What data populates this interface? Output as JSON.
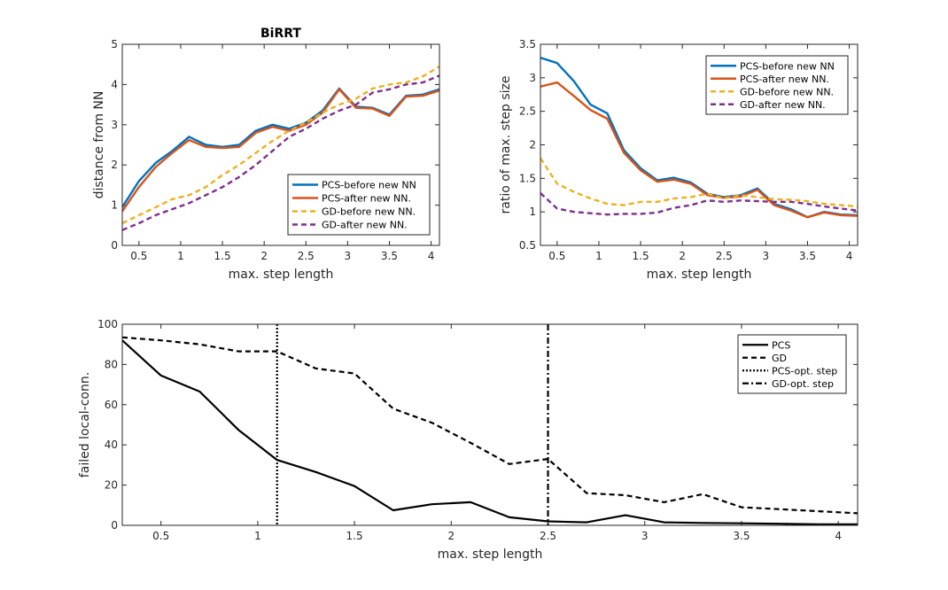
{
  "chart_data": [
    {
      "type": "line",
      "title": "BiRRT",
      "xlabel": "max. step length",
      "ylabel": "distance from NN",
      "xlim": [
        0.3,
        4.1
      ],
      "ylim": [
        0,
        5
      ],
      "xticks": [
        0.5,
        1,
        1.5,
        2,
        2.5,
        3,
        3.5,
        4
      ],
      "xtick_labels": [
        "0.5",
        "1",
        "1.5",
        "2",
        "2.5",
        "3",
        "3.5",
        "4"
      ],
      "yticks": [
        0,
        1,
        2,
        3,
        4,
        5
      ],
      "ytick_labels": [
        "0",
        "1",
        "2",
        "3",
        "4",
        "5"
      ],
      "legend_position": "bottom-right",
      "x": [
        0.3,
        0.5,
        0.7,
        0.9,
        1.1,
        1.3,
        1.5,
        1.7,
        1.9,
        2.1,
        2.3,
        2.5,
        2.7,
        2.9,
        3.1,
        3.3,
        3.5,
        3.7,
        3.9,
        4.1
      ],
      "series": [
        {
          "name": "PCS-before new NN",
          "color": "#0072BD",
          "dash": "solid",
          "values": [
            0.95,
            1.6,
            2.05,
            2.35,
            2.7,
            2.5,
            2.45,
            2.5,
            2.85,
            3.0,
            2.9,
            3.05,
            3.35,
            3.9,
            3.45,
            3.42,
            3.25,
            3.72,
            3.75,
            3.88
          ]
        },
        {
          "name": "PCS-after new NN.",
          "color": "#D95319",
          "dash": "solid",
          "values": [
            0.85,
            1.45,
            1.95,
            2.3,
            2.62,
            2.45,
            2.42,
            2.45,
            2.8,
            2.95,
            2.85,
            3.0,
            3.3,
            3.88,
            3.42,
            3.4,
            3.22,
            3.7,
            3.72,
            3.85
          ]
        },
        {
          "name": "GD-before new NN.",
          "color": "#EDB120",
          "dash": "dashed",
          "values": [
            0.55,
            0.75,
            0.95,
            1.15,
            1.25,
            1.45,
            1.75,
            2.0,
            2.3,
            2.6,
            2.85,
            3.05,
            3.3,
            3.5,
            3.65,
            3.9,
            4.0,
            4.05,
            4.2,
            4.45
          ]
        },
        {
          "name": "GD-after new NN.",
          "color": "#7E2F8E",
          "dash": "dashed",
          "values": [
            0.38,
            0.55,
            0.75,
            0.9,
            1.05,
            1.25,
            1.45,
            1.7,
            2.0,
            2.35,
            2.7,
            2.9,
            3.15,
            3.35,
            3.5,
            3.8,
            3.88,
            4.0,
            4.05,
            4.22
          ]
        }
      ]
    },
    {
      "type": "line",
      "title": "",
      "xlabel": "max. step length",
      "ylabel": "ratio of max. step size",
      "xlim": [
        0.3,
        4.1
      ],
      "ylim": [
        0.5,
        3.5
      ],
      "xticks": [
        0.5,
        1,
        1.5,
        2,
        2.5,
        3,
        3.5,
        4
      ],
      "xtick_labels": [
        "0.5",
        "1",
        "1.5",
        "2",
        "2.5",
        "3",
        "3.5",
        "4"
      ],
      "yticks": [
        0.5,
        1,
        1.5,
        2,
        2.5,
        3,
        3.5
      ],
      "ytick_labels": [
        "0.5",
        "1",
        "1.5",
        "2",
        "2.5",
        "3",
        "3.5"
      ],
      "legend_position": "top-right",
      "x": [
        0.3,
        0.5,
        0.7,
        0.9,
        1.1,
        1.3,
        1.5,
        1.7,
        1.9,
        2.1,
        2.3,
        2.5,
        2.7,
        2.9,
        3.1,
        3.3,
        3.5,
        3.7,
        3.9,
        4.1
      ],
      "series": [
        {
          "name": "PCS-before new NN",
          "color": "#0072BD",
          "dash": "solid",
          "values": [
            3.3,
            3.22,
            2.95,
            2.6,
            2.47,
            1.92,
            1.65,
            1.47,
            1.51,
            1.44,
            1.27,
            1.22,
            1.25,
            1.35,
            1.12,
            1.04,
            0.92,
            1.0,
            0.96,
            0.95
          ]
        },
        {
          "name": "PCS-after new NN.",
          "color": "#D95319",
          "dash": "solid",
          "values": [
            2.87,
            2.93,
            2.73,
            2.52,
            2.39,
            1.88,
            1.62,
            1.45,
            1.48,
            1.42,
            1.25,
            1.21,
            1.23,
            1.33,
            1.1,
            1.02,
            0.92,
            0.99,
            0.95,
            0.94
          ]
        },
        {
          "name": "GD-before new NN.",
          "color": "#EDB120",
          "dash": "dashed",
          "values": [
            1.8,
            1.42,
            1.3,
            1.2,
            1.12,
            1.1,
            1.15,
            1.15,
            1.2,
            1.22,
            1.27,
            1.2,
            1.25,
            1.22,
            1.19,
            1.18,
            1.16,
            1.12,
            1.1,
            1.08
          ]
        },
        {
          "name": "GD-after new NN.",
          "color": "#7E2F8E",
          "dash": "dashed",
          "values": [
            1.28,
            1.05,
            1.0,
            0.98,
            0.96,
            0.97,
            0.97,
            0.99,
            1.06,
            1.1,
            1.17,
            1.15,
            1.17,
            1.16,
            1.15,
            1.15,
            1.12,
            1.08,
            1.05,
            1.02
          ]
        }
      ]
    },
    {
      "type": "line",
      "title": "",
      "xlabel": "max. step length",
      "ylabel": "failed local-conn.",
      "xlim": [
        0.3,
        4.1
      ],
      "ylim": [
        0,
        100
      ],
      "xticks": [
        0.5,
        1,
        1.5,
        2,
        2.5,
        3,
        3.5,
        4
      ],
      "xtick_labels": [
        "0.5",
        "1",
        "1.5",
        "2",
        "2.5",
        "3",
        "3.5",
        "4"
      ],
      "yticks": [
        0,
        20,
        40,
        60,
        80,
        100
      ],
      "ytick_labels": [
        "0",
        "20",
        "40",
        "60",
        "80",
        "100"
      ],
      "legend_position": "top-right",
      "x": [
        0.3,
        0.5,
        0.7,
        0.9,
        1.1,
        1.3,
        1.5,
        1.7,
        1.9,
        2.1,
        2.3,
        2.5,
        2.7,
        2.9,
        3.1,
        3.3,
        3.5,
        3.7,
        3.9,
        4.1
      ],
      "series": [
        {
          "name": "PCS",
          "color": "#000000",
          "dash": "solid",
          "values": [
            92,
            74.5,
            66.5,
            47.5,
            32.5,
            26.5,
            19.5,
            7.5,
            10.5,
            11.5,
            4,
            2,
            1.5,
            5,
            1.5,
            1.2,
            1,
            0.8,
            0.5,
            0.5
          ]
        },
        {
          "name": "GD",
          "color": "#000000",
          "dash": "dashed",
          "values": [
            93.5,
            92,
            90,
            86.5,
            86.5,
            78,
            75.5,
            58,
            51,
            41,
            30.5,
            33,
            16,
            15,
            11.5,
            15.5,
            9,
            8,
            7,
            6
          ]
        }
      ],
      "vlines": [
        {
          "name": "PCS-opt. step",
          "x": 1.1,
          "color": "#000000",
          "dash": "dotted"
        },
        {
          "name": "GD-opt. step",
          "x": 2.5,
          "color": "#000000",
          "dash": "dashdot"
        }
      ]
    }
  ]
}
